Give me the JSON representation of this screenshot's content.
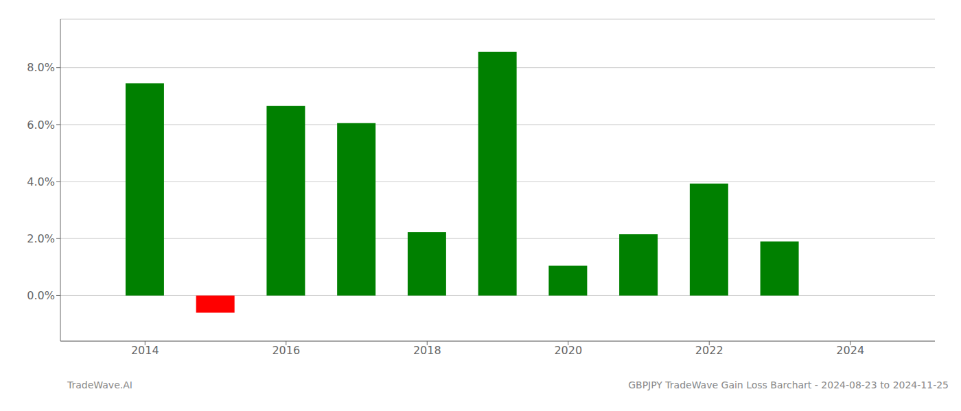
{
  "chart_data": {
    "type": "bar",
    "x": [
      2014,
      2015,
      2016,
      2017,
      2018,
      2019,
      2020,
      2021,
      2022,
      2023
    ],
    "values": [
      0.0745,
      -0.006,
      0.0665,
      0.0605,
      0.0222,
      0.0855,
      0.0105,
      0.0215,
      0.0393,
      0.019
    ],
    "colors": [
      "#008000",
      "#ff0000",
      "#008000",
      "#008000",
      "#008000",
      "#008000",
      "#008000",
      "#008000",
      "#008000",
      "#008000"
    ],
    "xlim": [
      2012.8,
      2025.2
    ],
    "xticks": [
      2014,
      2016,
      2018,
      2020,
      2022,
      2024
    ],
    "ylim": [
      -0.016,
      0.097
    ],
    "yticks": [
      {
        "value": 0.0,
        "label": "0.0%"
      },
      {
        "value": 0.02,
        "label": "2.0%"
      },
      {
        "value": 0.04,
        "label": "4.0%"
      },
      {
        "value": 0.06,
        "label": "6.0%"
      },
      {
        "value": 0.08,
        "label": "8.0%"
      }
    ],
    "grid": true,
    "annotations": [
      "TradeWave.AI",
      "GBPJPY TradeWave Gain Loss Barchart - 2024-08-23 to 2024-11-25"
    ]
  }
}
